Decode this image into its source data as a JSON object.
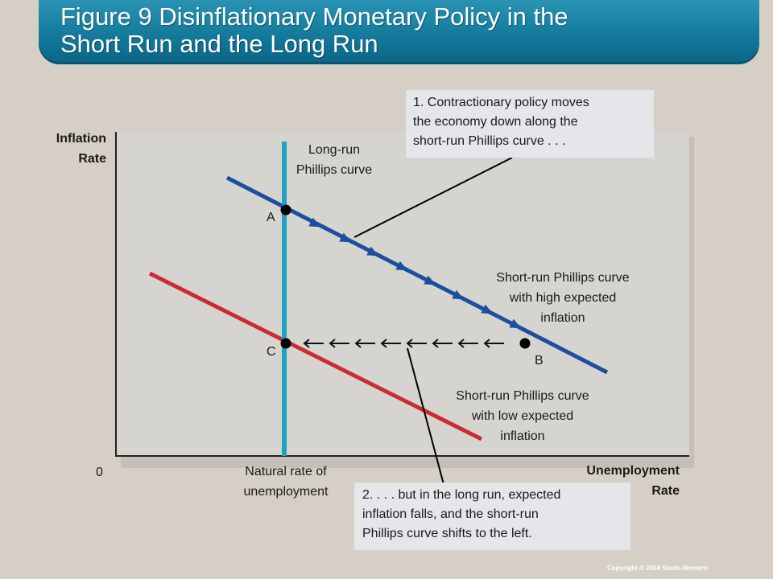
{
  "title": {
    "line1": "Figure 9 Disinflationary Monetary Policy in the",
    "line2": "Short Run and the Long Run"
  },
  "axes": {
    "y_label_line1": "Inflation",
    "y_label_line2": "Rate",
    "x_label_line1": "Unemployment",
    "x_label_line2": "Rate",
    "origin": "0",
    "natural_rate_line1": "Natural rate of",
    "natural_rate_line2": "unemployment"
  },
  "curves": {
    "long_run_line1": "Long-run",
    "long_run_line2": "Phillips curve",
    "high_line1": "Short-run Phillips curve",
    "high_line2": "with high expected",
    "high_line3": "inflation",
    "low_line1": "Short-run Phillips curve",
    "low_line2": "with low expected",
    "low_line3": "inflation"
  },
  "points": {
    "a": "A",
    "b": "B",
    "c": "C"
  },
  "callouts": {
    "one": [
      "1. Contractionary policy moves",
      "the economy down along the",
      "short-run Phillips curve . . ."
    ],
    "two": [
      "2. . . . but in the long run, expected",
      "inflation falls, and the short-run",
      "Phillips curve shifts to the left."
    ]
  },
  "colors": {
    "title_bar": "#137a9c",
    "background": "#d5cfc6",
    "plot_area": "#d6d4cf",
    "long_run_curve": "#1fa3c2",
    "high_curve": "#1c4fa0",
    "low_curve": "#cc2a36",
    "callout_fill": "#e4e6ea"
  },
  "copyright": "Copyright © 2004  South-Western"
}
